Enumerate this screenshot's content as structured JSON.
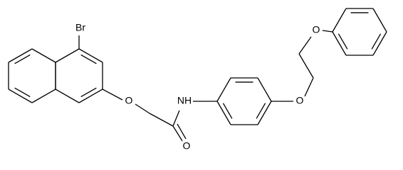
{
  "atoms": [
    {
      "label": "Br"
    },
    {
      "label": "O"
    },
    {
      "label": "NH"
    },
    {
      "label": "O"
    },
    {
      "label": "O"
    },
    {
      "label": "O"
    }
  ]
}
